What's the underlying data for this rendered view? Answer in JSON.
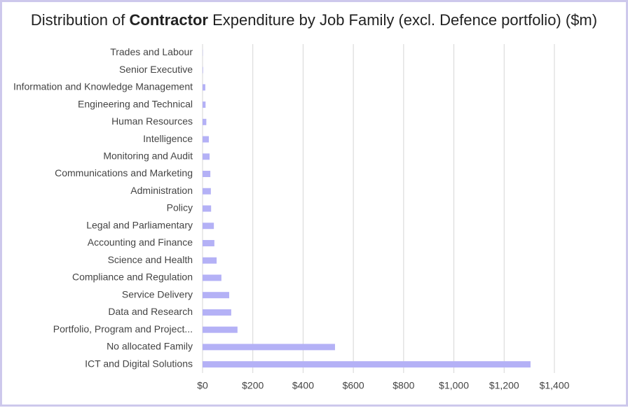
{
  "chart_data": {
    "type": "bar",
    "orientation": "horizontal",
    "title": [
      "Distribution of ",
      "Contractor",
      " Expenditure by Job Family (excl. Defence portfolio) ($m)"
    ],
    "categories": [
      "Trades and Labour",
      "Senior Executive",
      "Information and Knowledge Management",
      "Engineering and Technical",
      "Human Resources",
      "Intelligence",
      "Monitoring and Audit",
      "Communications and Marketing",
      "Administration",
      "Policy",
      "Legal and Parliamentary",
      "Accounting and Finance",
      "Science and Health",
      "Compliance and Regulation",
      "Service Delivery",
      "Data and Research",
      "Portfolio, Program and Project...",
      "No allocated Family",
      "ICT and Digital Solutions"
    ],
    "values": [
      1,
      2,
      11,
      12,
      15,
      25,
      28,
      31,
      33,
      34,
      45,
      47,
      56,
      75,
      106,
      114,
      139,
      527,
      1305
    ],
    "color": "#b4b1f6",
    "xlim": [
      0,
      1400
    ],
    "xticks": [
      {
        "value": 0,
        "label": "$0"
      },
      {
        "value": 200,
        "label": "$200"
      },
      {
        "value": 400,
        "label": "$400"
      },
      {
        "value": 600,
        "label": "$600"
      },
      {
        "value": 800,
        "label": "$800"
      },
      {
        "value": 1000,
        "label": "$1,000"
      },
      {
        "value": 1200,
        "label": "$1,200"
      },
      {
        "value": 1400,
        "label": "$1,400"
      }
    ],
    "grid": true
  }
}
